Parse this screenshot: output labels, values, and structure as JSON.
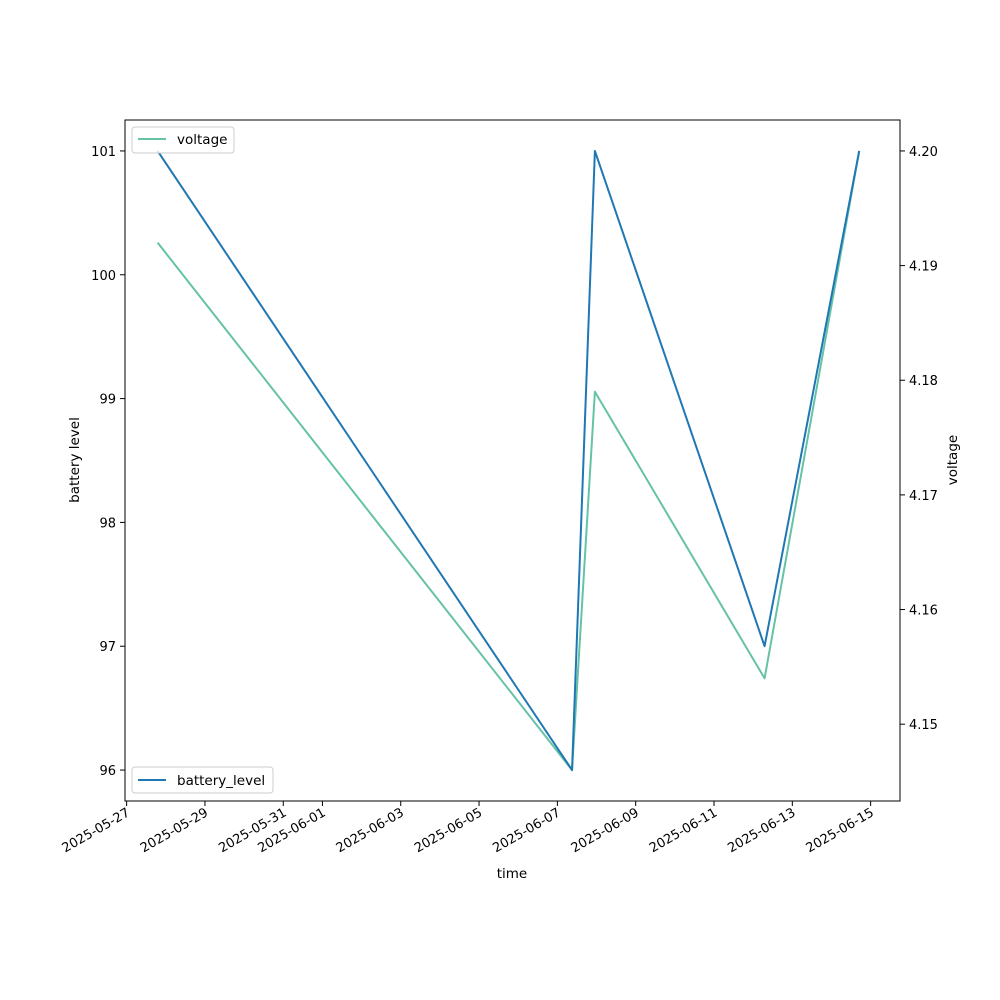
{
  "chart_data": {
    "type": "line",
    "xlabel": "time",
    "ylabel_left": "battery level",
    "ylabel_right": "voltage",
    "x": [
      "2025-05-27T19:00",
      "2025-06-07T09:00",
      "2025-06-07T23:00",
      "2025-06-12T07:00",
      "2025-06-14T17:00"
    ],
    "x_tick_labels": [
      "2025-05-27",
      "2025-05-29",
      "2025-05-31",
      "2025-06-01",
      "2025-06-03",
      "2025-06-05",
      "2025-06-07",
      "2025-06-09",
      "2025-06-11",
      "2025-06-13",
      "2025-06-15"
    ],
    "x_ticks": [
      "2025-05-27",
      "2025-05-29",
      "2025-05-31",
      "2025-06-01",
      "2025-06-03",
      "2025-06-05",
      "2025-06-07",
      "2025-06-09",
      "2025-06-11",
      "2025-06-13",
      "2025-06-15"
    ],
    "xlim": [
      "2025-05-26T23:00",
      "2025-06-15T18:00"
    ],
    "series": [
      {
        "name": "battery_level",
        "axis": "left",
        "color": "#1f77b4",
        "values": [
          101,
          96,
          101,
          97,
          101
        ]
      },
      {
        "name": "voltage",
        "axis": "right",
        "color": "#66c2a5",
        "values": [
          4.192,
          4.146,
          4.179,
          4.154,
          4.2
        ]
      }
    ],
    "y_left_ticks": [
      96,
      97,
      98,
      99,
      100,
      101
    ],
    "y_left_tick_labels": [
      "96",
      "97",
      "98",
      "99",
      "100",
      "101"
    ],
    "y_left_lim": [
      95.75,
      101.25
    ],
    "y_right_ticks": [
      4.15,
      4.16,
      4.17,
      4.18,
      4.19,
      4.2
    ],
    "y_right_tick_labels": [
      "4.15",
      "4.16",
      "4.17",
      "4.18",
      "4.19",
      "4.20"
    ],
    "y_right_lim": [
      4.1433,
      4.2027
    ],
    "legends": [
      {
        "placement": "upper-left",
        "entries": [
          "voltage"
        ]
      },
      {
        "placement": "lower-left",
        "entries": [
          "battery_level"
        ]
      }
    ],
    "grid": false
  }
}
